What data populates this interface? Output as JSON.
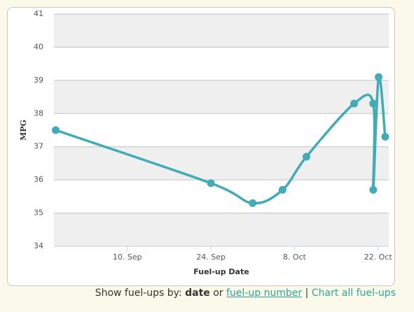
{
  "chart_data": {
    "type": "spline",
    "y_label": "MPG",
    "x_label": "Fuel-up Date",
    "x": [
      241,
      267,
      274,
      279,
      283,
      291,
      294.2,
      294.2,
      295.1,
      296.2
    ],
    "series": [
      {
        "color": "#41abb6",
        "values": [
          37.5,
          35.9,
          35.3,
          35.7,
          36.7,
          38.3,
          38.3,
          35.7,
          39.1,
          37.3
        ]
      }
    ],
    "xlim": [
      240.7,
      296.8
    ],
    "xticks": [
      {
        "value": 253,
        "label": "10. Sep"
      },
      {
        "value": 267,
        "label": "24. Sep"
      },
      {
        "value": 281,
        "label": "8. Oct"
      },
      {
        "value": 295,
        "label": "22. Oct"
      }
    ],
    "ylim": [
      34,
      41
    ],
    "yticks": [
      34,
      35,
      36,
      37,
      38,
      39,
      40,
      41
    ],
    "grid": true
  },
  "footer": {
    "prefix": "Show fuel-ups by:",
    "current": "date",
    "or": "or",
    "link1": "fuel-up number",
    "sep": "|",
    "link2": "Chart all fuel-ups"
  }
}
